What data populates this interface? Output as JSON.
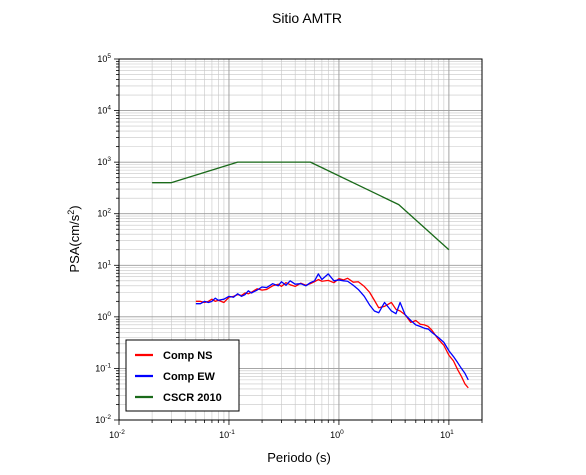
{
  "chart_data": {
    "type": "line",
    "title": "Sitio AMTR",
    "xlabel": "Periodo (s)",
    "ylabel": {
      "base": "PSA(cm/s",
      "sup": "2",
      "close": ")"
    },
    "x_scale": "log",
    "y_scale": "log",
    "xlim": [
      0.01,
      20
    ],
    "ylim": [
      0.01,
      100000
    ],
    "x_ticks": [
      {
        "value": 0.01,
        "base": "10",
        "exp": "-2"
      },
      {
        "value": 0.1,
        "base": "10",
        "exp": "-1"
      },
      {
        "value": 1,
        "base": "10",
        "exp": "0"
      },
      {
        "value": 10,
        "base": "10",
        "exp": "1"
      }
    ],
    "y_ticks": [
      {
        "value": 0.01,
        "base": "10",
        "exp": "-2"
      },
      {
        "value": 0.1,
        "base": "10",
        "exp": "-1"
      },
      {
        "value": 1,
        "base": "10",
        "exp": "0"
      },
      {
        "value": 10,
        "base": "10",
        "exp": "1"
      },
      {
        "value": 100,
        "base": "10",
        "exp": "2"
      },
      {
        "value": 1000,
        "base": "10",
        "exp": "3"
      },
      {
        "value": 10000,
        "base": "10",
        "exp": "4"
      },
      {
        "value": 100000,
        "base": "10",
        "exp": "5"
      }
    ],
    "grid": true,
    "legend_position": "bottom-left",
    "series": [
      {
        "name": "Comp NS",
        "color": "#ff0000",
        "x": [
          0.05,
          0.055,
          0.06,
          0.065,
          0.07,
          0.075,
          0.08,
          0.09,
          0.1,
          0.11,
          0.12,
          0.13,
          0.14,
          0.15,
          0.16,
          0.18,
          0.2,
          0.22,
          0.25,
          0.28,
          0.3,
          0.33,
          0.36,
          0.4,
          0.45,
          0.5,
          0.55,
          0.6,
          0.65,
          0.7,
          0.8,
          0.9,
          1.0,
          1.1,
          1.2,
          1.35,
          1.5,
          1.7,
          1.9,
          2.1,
          2.3,
          2.6,
          3.0,
          3.3,
          3.6,
          4.0,
          4.5,
          5.0,
          5.5,
          6.0,
          6.5,
          7.0,
          8.0,
          9.0,
          10.0,
          11.0,
          12.0,
          13.0,
          14.0,
          15.0
        ],
        "y": [
          2.0,
          2.0,
          1.9,
          2.0,
          2.2,
          2.0,
          2.1,
          1.9,
          2.4,
          2.5,
          2.7,
          2.6,
          2.9,
          2.8,
          3.0,
          3.5,
          3.3,
          3.4,
          4.0,
          4.3,
          3.9,
          4.6,
          4.2,
          3.9,
          4.5,
          4.1,
          4.4,
          4.8,
          5.3,
          4.9,
          5.1,
          4.6,
          5.5,
          5.2,
          5.6,
          4.7,
          4.8,
          3.9,
          3.0,
          2.1,
          1.5,
          1.6,
          1.9,
          1.4,
          1.3,
          1.1,
          0.78,
          0.85,
          0.72,
          0.7,
          0.65,
          0.55,
          0.37,
          0.28,
          0.18,
          0.14,
          0.095,
          0.07,
          0.05,
          0.042
        ]
      },
      {
        "name": "Comp EW",
        "color": "#0000ff",
        "x": [
          0.05,
          0.055,
          0.06,
          0.065,
          0.07,
          0.075,
          0.08,
          0.09,
          0.1,
          0.11,
          0.12,
          0.13,
          0.14,
          0.15,
          0.16,
          0.18,
          0.2,
          0.22,
          0.25,
          0.28,
          0.3,
          0.33,
          0.36,
          0.4,
          0.45,
          0.5,
          0.55,
          0.6,
          0.65,
          0.7,
          0.8,
          0.9,
          1.0,
          1.1,
          1.2,
          1.35,
          1.5,
          1.7,
          1.9,
          2.1,
          2.3,
          2.6,
          3.0,
          3.3,
          3.6,
          4.0,
          4.5,
          5.0,
          5.5,
          6.0,
          6.5,
          7.0,
          8.0,
          9.0,
          10.0,
          11.0,
          12.0,
          13.0,
          14.0,
          15.0
        ],
        "y": [
          1.8,
          1.8,
          2.0,
          1.9,
          2.0,
          2.3,
          2.1,
          2.2,
          2.5,
          2.4,
          2.8,
          2.5,
          2.7,
          3.2,
          2.9,
          3.3,
          3.8,
          3.7,
          4.4,
          4.0,
          4.8,
          4.1,
          5.0,
          4.3,
          4.4,
          4.0,
          4.6,
          5.0,
          6.8,
          5.3,
          6.8,
          5.0,
          5.2,
          5.0,
          4.9,
          4.1,
          3.4,
          2.5,
          1.7,
          1.3,
          1.2,
          1.9,
          1.3,
          1.15,
          1.9,
          1.1,
          0.85,
          0.7,
          0.65,
          0.6,
          0.58,
          0.5,
          0.4,
          0.32,
          0.22,
          0.17,
          0.13,
          0.1,
          0.08,
          0.06
        ]
      },
      {
        "name": "CSCR 2010",
        "color": "#1a6a1a",
        "x": [
          0.02,
          0.03,
          0.12,
          0.55,
          3.5,
          10.0
        ],
        "y": [
          400,
          400,
          1000,
          1000,
          150,
          20
        ]
      }
    ]
  }
}
